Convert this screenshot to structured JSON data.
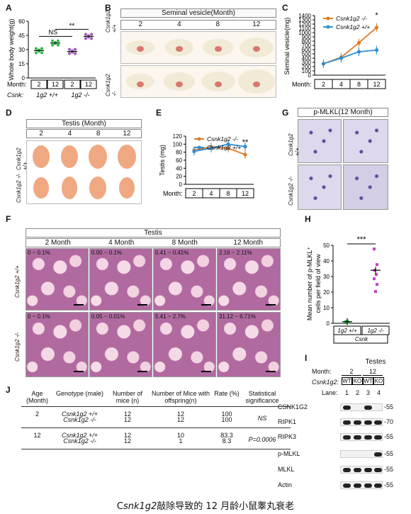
{
  "caption": "Csnk1g2敲除导致的 12 月龄小鼠睾丸衰老",
  "caption_prefix": "C",
  "caption_gene": "snk1g2",
  "caption_rest": "敲除导致的 12 月龄小鼠睾丸衰老",
  "panels": {
    "A": {
      "label": "A",
      "ylabel": "Whole body weight(g)",
      "ns": "NS",
      "sig": "**",
      "month_label": "Month:",
      "csnk_label": "Csnk:",
      "months": [
        "2",
        "12",
        "2",
        "12"
      ],
      "groups": [
        "1g2 +/+",
        "1g2 -/-"
      ]
    },
    "B": {
      "label": "B",
      "title": "Seminal vesicle(Month)",
      "months": [
        "2",
        "4",
        "8",
        "12"
      ],
      "rows": [
        "Csnk1g2 +/+",
        "Csnk1g2 -/-"
      ]
    },
    "C": {
      "label": "C",
      "ylabel": "Seminal vesicle(mg)",
      "sig": "*",
      "month_label": "Month:"
    },
    "D": {
      "label": "D",
      "title": "Testis (Month)",
      "months": [
        "2",
        "4",
        "8",
        "12"
      ],
      "rows": [
        "Csnk1g2 +/+",
        "Csnk1g2 -/-"
      ]
    },
    "E": {
      "label": "E",
      "ylabel": "Testis (mg)",
      "sig": "**",
      "month_label": "Month:"
    },
    "F": {
      "label": "F",
      "title": "Testis",
      "months": [
        "2 Month",
        "4 Month",
        "8 Month",
        "12 Month"
      ],
      "rows": [
        "Csnk1g2 +/+",
        "Csnk1g2 -/-"
      ],
      "wt": [
        "0 ~ 0.1%",
        "0.00 ~ 0.1%",
        "0.41 ~ 0.41%",
        "2.16 ~ 2.11%"
      ],
      "ko": [
        "0 ~ 0.1%",
        "0.05 ~ 0.01%",
        "5.41 ~ 2.7%",
        "31.12 ~ 6.71%"
      ]
    },
    "G": {
      "label": "G",
      "title": "p-MLKL(12 Month)",
      "rows": [
        "Csnk1g2 +/+",
        "Csnk1g2 -/-"
      ]
    },
    "H": {
      "label": "H",
      "ylabel": "Mean number of p-MLKL+ cells per field of view",
      "sig": "***",
      "groups": [
        "1g2 +/+",
        "1g2 -/-"
      ],
      "csnk": "Csnk"
    },
    "I": {
      "label": "I",
      "title": "Testes",
      "month_label": "Month:",
      "months": [
        "2",
        "12"
      ],
      "geno_label": "Csnk1g2:",
      "genos": [
        "WT",
        "KO",
        "WT",
        "KO"
      ],
      "lane_label": "Lane:",
      "lanes": [
        "1",
        "2",
        "3",
        "4"
      ],
      "blots": [
        {
          "name": "CSNK1G2",
          "mw": "55"
        },
        {
          "name": "RIPK1",
          "mw": "70"
        },
        {
          "name": "RIPK3",
          "mw": "55"
        },
        {
          "name": "p-MLKL",
          "mw": "55"
        },
        {
          "name": "MLKL",
          "mw": "55"
        },
        {
          "name": "Actin",
          "mw": "55"
        }
      ]
    },
    "J": {
      "label": "J",
      "headers": [
        "Age (Month)",
        "Genotype (male)",
        "Number of mice (n)",
        "Number of Mice with offspring(n)",
        "Rate (%)",
        "Statistical significance"
      ],
      "rows": [
        {
          "age": "2",
          "genotype": "Csnk1g2 +/+",
          "n": "12",
          "off": "12",
          "rate": "100"
        },
        {
          "age": "",
          "genotype": "Csnk1g2 -/-",
          "n": "12",
          "off": "12",
          "rate": "100"
        },
        {
          "age": "12",
          "genotype": "Csnk1g2 +/+",
          "n": "12",
          "off": "10",
          "rate": "83.3"
        },
        {
          "age": "",
          "genotype": "Csnk1g2 -/-",
          "n": "12",
          "off": "1",
          "rate": "8.3"
        }
      ],
      "sig": [
        "NS",
        "P=0.0006"
      ]
    }
  },
  "chart_data": [
    {
      "panel": "A",
      "type": "scatter",
      "ylabel": "Whole body weight(g)",
      "ylim": [
        0,
        60
      ],
      "yticks": [
        0,
        15,
        30,
        45,
        60
      ],
      "categories": [
        "2 (+/+)",
        "12 (+/+)",
        "2 (-/-)",
        "12 (-/-)"
      ],
      "means": [
        29,
        37,
        28,
        44
      ],
      "colors": [
        "#2db84a",
        "#2db84a",
        "#9b59b6",
        "#9b59b6"
      ]
    },
    {
      "panel": "C",
      "type": "line",
      "ylabel": "Seminal vesicle(mg)",
      "ylim": [
        0,
        1400
      ],
      "yticks": [
        0,
        100,
        200,
        300,
        400,
        500,
        600,
        700,
        800,
        900,
        1000,
        1100,
        1200,
        1300,
        1400
      ],
      "x": [
        "2",
        "4",
        "8",
        "12"
      ],
      "series": [
        {
          "name": "Csnk1g2 -/-",
          "color": "#e07b28",
          "values": [
            270,
            420,
            760,
            1120
          ]
        },
        {
          "name": "Csnk1g2 +/+",
          "color": "#2e8fd0",
          "values": [
            270,
            400,
            550,
            590
          ]
        }
      ]
    },
    {
      "panel": "E",
      "type": "line",
      "ylabel": "Testis (mg)",
      "ylim": [
        0,
        120
      ],
      "yticks": [
        0,
        20,
        40,
        60,
        80,
        100,
        120
      ],
      "x": [
        "2",
        "4",
        "8",
        "12"
      ],
      "series": [
        {
          "name": "Csnk1g2 -/-",
          "color": "#e07b28",
          "values": [
            85,
            93,
            90,
            74
          ]
        },
        {
          "name": "Csnk1g2 +/+",
          "color": "#2e8fd0",
          "values": [
            82,
            90,
            100,
            94
          ]
        }
      ]
    },
    {
      "panel": "H",
      "type": "scatter",
      "ylabel": "Mean number of p-MLKL+ cells per field of view",
      "ylim": [
        0,
        50
      ],
      "yticks": [
        0,
        10,
        20,
        30,
        40,
        50
      ],
      "categories": [
        "1g2 +/+",
        "1g2 -/-"
      ],
      "means": [
        1,
        34
      ],
      "colors": [
        "#2db84a",
        "#c23fc2"
      ]
    }
  ]
}
